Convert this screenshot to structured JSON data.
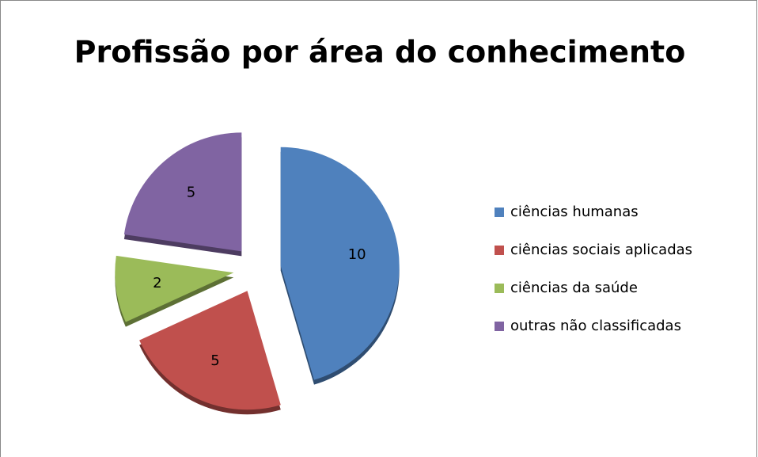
{
  "chart_data": {
    "type": "pie",
    "title": "Profissão por área do conhecimento",
    "categories": [
      "ciências humanas",
      "ciências sociais aplicadas",
      "ciências da saúde",
      "outras não classificadas"
    ],
    "values": [
      10,
      5,
      2,
      5
    ],
    "colors": [
      "#4f81bd",
      "#c0504d",
      "#9bbb59",
      "#8064a2"
    ],
    "legend": "right"
  }
}
